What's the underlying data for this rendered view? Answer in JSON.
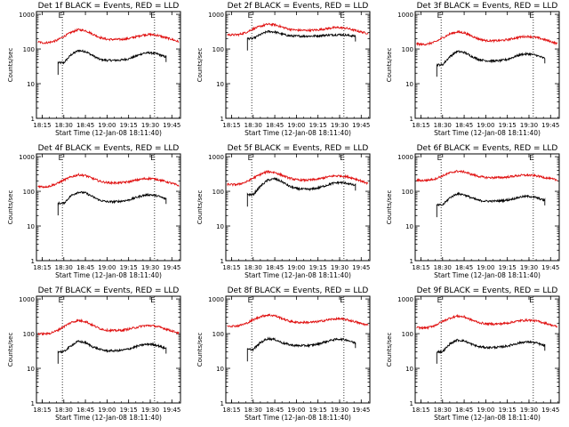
{
  "chart_data": [
    {
      "type": "line",
      "title": "Det 1f BLACK = Events, RED = LLD",
      "marker": "E",
      "xlabel": "Start Time (12-Jan-08 18:11:40)",
      "ylabel": "Counts/sec",
      "x_ticks": [
        "18:15",
        "18:30",
        "18:45",
        "19:00",
        "19:15",
        "19:30",
        "19:45"
      ],
      "y_ticks": [
        "1",
        "10",
        "100",
        "1000"
      ],
      "y_scale": "log",
      "ylim": [
        1,
        1200
      ],
      "x": [
        "18:12",
        "18:16",
        "18:20",
        "18:25",
        "18:30",
        "18:35",
        "18:40",
        "18:45",
        "18:50",
        "18:55",
        "19:00",
        "19:05",
        "19:10",
        "19:15",
        "19:20",
        "19:25",
        "19:30",
        "19:35",
        "19:40",
        "19:45",
        "19:50"
      ],
      "series": [
        {
          "name": "BLACK = Events",
          "color": "#000000",
          "x_start": "18:26",
          "x_end": "19:41",
          "values": [
            null,
            null,
            null,
            null,
            40,
            68,
            90,
            85,
            65,
            50,
            47,
            47,
            48,
            52,
            62,
            75,
            78,
            72,
            60,
            null,
            null
          ]
        },
        {
          "name": "RED = LLD",
          "color": "#e01010",
          "x_start": "18:12",
          "x_end": "19:50",
          "values": [
            160,
            150,
            155,
            175,
            230,
            300,
            360,
            340,
            270,
            215,
            190,
            188,
            190,
            200,
            225,
            255,
            262,
            248,
            215,
            190,
            160
          ]
        }
      ]
    },
    {
      "type": "line",
      "title": "Det 2f BLACK = Events, RED = LLD",
      "marker": "E",
      "xlabel": "Start Time (12-Jan-08 18:11:40)",
      "ylabel": "Counts/sec",
      "x_ticks": [
        "18:15",
        "18:30",
        "18:45",
        "19:00",
        "19:15",
        "19:30",
        "19:45"
      ],
      "y_ticks": [
        "1",
        "10",
        "100",
        "1000"
      ],
      "y_scale": "log",
      "ylim": [
        1,
        1200
      ],
      "x": [
        "18:12",
        "18:16",
        "18:20",
        "18:25",
        "18:30",
        "18:35",
        "18:40",
        "18:45",
        "18:50",
        "18:55",
        "19:00",
        "19:05",
        "19:10",
        "19:15",
        "19:20",
        "19:25",
        "19:30",
        "19:35",
        "19:40",
        "19:45",
        "19:50"
      ],
      "series": [
        {
          "name": "BLACK = Events",
          "color": "#000000",
          "x_start": "18:26",
          "x_end": "19:41",
          "values": [
            null,
            null,
            null,
            null,
            200,
            260,
            320,
            310,
            270,
            240,
            235,
            235,
            235,
            240,
            250,
            255,
            260,
            250,
            235,
            null,
            null
          ]
        },
        {
          "name": "RED = LLD",
          "color": "#e01010",
          "x_start": "18:12",
          "x_end": "19:50",
          "values": [
            260,
            255,
            260,
            300,
            380,
            450,
            520,
            500,
            430,
            370,
            350,
            345,
            345,
            355,
            380,
            410,
            415,
            395,
            350,
            310,
            280
          ]
        }
      ]
    },
    {
      "type": "line",
      "title": "Det 3f BLACK = Events, RED = LLD",
      "marker": "E",
      "xlabel": "Start Time (12-Jan-08 18:11:40)",
      "ylabel": "Counts/sec",
      "x_ticks": [
        "18:15",
        "18:30",
        "18:45",
        "19:00",
        "19:15",
        "19:30",
        "19:45"
      ],
      "y_ticks": [
        "1",
        "10",
        "100",
        "1000"
      ],
      "y_scale": "log",
      "ylim": [
        1,
        1200
      ],
      "x": [
        "18:12",
        "18:16",
        "18:20",
        "18:25",
        "18:30",
        "18:35",
        "18:40",
        "18:45",
        "18:50",
        "18:55",
        "19:00",
        "19:05",
        "19:10",
        "19:15",
        "19:20",
        "19:25",
        "19:30",
        "19:35",
        "19:40",
        "19:45",
        "19:50"
      ],
      "series": [
        {
          "name": "BLACK = Events",
          "color": "#000000",
          "x_start": "18:26",
          "x_end": "19:41",
          "values": [
            null,
            null,
            null,
            null,
            35,
            60,
            85,
            80,
            62,
            50,
            46,
            45,
            46,
            50,
            60,
            70,
            72,
            66,
            55,
            null,
            null
          ]
        },
        {
          "name": "RED = LLD",
          "color": "#e01010",
          "x_start": "18:12",
          "x_end": "19:50",
          "values": [
            140,
            135,
            140,
            160,
            210,
            270,
            310,
            295,
            240,
            195,
            175,
            172,
            175,
            185,
            205,
            225,
            230,
            215,
            190,
            165,
            140
          ]
        }
      ]
    },
    {
      "type": "line",
      "title": "Det 4f BLACK = Events, RED = LLD",
      "marker": "E",
      "xlabel": "Start Time (12-Jan-08 18:11:40)",
      "ylabel": "Counts/sec",
      "x_ticks": [
        "18:15",
        "18:30",
        "18:45",
        "19:00",
        "19:15",
        "19:30",
        "19:45"
      ],
      "y_ticks": [
        "1",
        "10",
        "100",
        "1000"
      ],
      "y_scale": "log",
      "ylim": [
        1,
        1200
      ],
      "x": [
        "18:12",
        "18:16",
        "18:20",
        "18:25",
        "18:30",
        "18:35",
        "18:40",
        "18:45",
        "18:50",
        "18:55",
        "19:00",
        "19:05",
        "19:10",
        "19:15",
        "19:20",
        "19:25",
        "19:30",
        "19:35",
        "19:40",
        "19:45",
        "19:50"
      ],
      "series": [
        {
          "name": "BLACK = Events",
          "color": "#000000",
          "x_start": "18:26",
          "x_end": "19:41",
          "values": [
            null,
            null,
            null,
            null,
            45,
            75,
            95,
            90,
            70,
            55,
            50,
            50,
            52,
            56,
            66,
            76,
            80,
            74,
            62,
            null,
            null
          ]
        },
        {
          "name": "RED = LLD",
          "color": "#e01010",
          "x_start": "18:12",
          "x_end": "19:50",
          "values": [
            140,
            135,
            140,
            165,
            210,
            260,
            300,
            285,
            235,
            195,
            178,
            175,
            178,
            188,
            208,
            228,
            235,
            220,
            195,
            170,
            145
          ]
        }
      ]
    },
    {
      "type": "line",
      "title": "Det 5f BLACK = Events, RED = LLD",
      "marker": "E",
      "xlabel": "Start Time (12-Jan-08 18:11:40)",
      "ylabel": "Counts/sec",
      "x_ticks": [
        "18:15",
        "18:30",
        "18:45",
        "19:00",
        "19:15",
        "19:30",
        "19:45"
      ],
      "y_ticks": [
        "1",
        "10",
        "100",
        "1000"
      ],
      "y_scale": "log",
      "ylim": [
        1,
        1200
      ],
      "x": [
        "18:12",
        "18:16",
        "18:20",
        "18:25",
        "18:30",
        "18:35",
        "18:40",
        "18:45",
        "18:50",
        "18:55",
        "19:00",
        "19:05",
        "19:10",
        "19:15",
        "19:20",
        "19:25",
        "19:30",
        "19:35",
        "19:40",
        "19:45",
        "19:50"
      ],
      "series": [
        {
          "name": "BLACK = Events",
          "color": "#000000",
          "x_start": "18:26",
          "x_end": "19:41",
          "values": [
            null,
            null,
            null,
            null,
            80,
            140,
            210,
            230,
            190,
            140,
            120,
            115,
            115,
            125,
            145,
            170,
            180,
            172,
            150,
            null,
            null
          ]
        },
        {
          "name": "RED = LLD",
          "color": "#e01010",
          "x_start": "18:12",
          "x_end": "19:50",
          "values": [
            160,
            155,
            160,
            185,
            240,
            310,
            370,
            350,
            290,
            240,
            215,
            210,
            212,
            225,
            250,
            275,
            280,
            265,
            235,
            200,
            165
          ]
        }
      ]
    },
    {
      "type": "line",
      "title": "Det 6f BLACK = Events, RED = LLD",
      "marker": "E",
      "xlabel": "Start Time (12-Jan-08 18:11:40)",
      "ylabel": "Counts/sec",
      "x_ticks": [
        "18:15",
        "18:30",
        "18:45",
        "19:00",
        "19:15",
        "19:30",
        "19:45"
      ],
      "y_ticks": [
        "1",
        "10",
        "100",
        "1000"
      ],
      "y_scale": "log",
      "ylim": [
        1,
        1200
      ],
      "x": [
        "18:12",
        "18:16",
        "18:20",
        "18:25",
        "18:30",
        "18:35",
        "18:40",
        "18:45",
        "18:50",
        "18:55",
        "19:00",
        "19:05",
        "19:10",
        "19:15",
        "19:20",
        "19:25",
        "19:30",
        "19:35",
        "19:40",
        "19:45",
        "19:50"
      ],
      "series": [
        {
          "name": "BLACK = Events",
          "color": "#000000",
          "x_start": "18:26",
          "x_end": "19:41",
          "values": [
            null,
            null,
            null,
            null,
            40,
            65,
            85,
            80,
            65,
            55,
            52,
            52,
            53,
            56,
            62,
            70,
            72,
            66,
            56,
            null,
            null
          ]
        },
        {
          "name": "RED = LLD",
          "color": "#e01010",
          "x_start": "18:12",
          "x_end": "19:50",
          "values": [
            210,
            205,
            210,
            230,
            280,
            340,
            380,
            365,
            310,
            270,
            250,
            248,
            250,
            258,
            275,
            290,
            292,
            280,
            255,
            230,
            210
          ]
        }
      ]
    },
    {
      "type": "line",
      "title": "Det 7f BLACK = Events, RED = LLD",
      "marker": "E",
      "xlabel": "Start Time (12-Jan-08 18:11:40)",
      "ylabel": "Counts/sec",
      "x_ticks": [
        "18:15",
        "18:30",
        "18:45",
        "19:00",
        "19:15",
        "19:30",
        "19:45"
      ],
      "y_ticks": [
        "1",
        "10",
        "100",
        "1000"
      ],
      "y_scale": "log",
      "ylim": [
        1,
        1200
      ],
      "x": [
        "18:12",
        "18:16",
        "18:20",
        "18:25",
        "18:30",
        "18:35",
        "18:40",
        "18:45",
        "18:50",
        "18:55",
        "19:00",
        "19:05",
        "19:10",
        "19:15",
        "19:20",
        "19:25",
        "19:30",
        "19:35",
        "19:40",
        "19:45",
        "19:50"
      ],
      "series": [
        {
          "name": "BLACK = Events",
          "color": "#000000",
          "x_start": "18:26",
          "x_end": "19:41",
          "values": [
            null,
            null,
            null,
            null,
            30,
            45,
            60,
            55,
            42,
            35,
            32,
            32,
            33,
            36,
            42,
            48,
            50,
            46,
            38,
            null,
            null
          ]
        },
        {
          "name": "RED = LLD",
          "color": "#e01010",
          "x_start": "18:12",
          "x_end": "19:50",
          "values": [
            100,
            98,
            102,
            120,
            160,
            210,
            240,
            225,
            175,
            140,
            125,
            122,
            125,
            135,
            150,
            168,
            172,
            160,
            140,
            120,
            105
          ]
        }
      ]
    },
    {
      "type": "line",
      "title": "Det 8f BLACK = Events, RED = LLD",
      "marker": "E",
      "xlabel": "Start Time (12-Jan-08 18:11:40)",
      "ylabel": "Counts/sec",
      "x_ticks": [
        "18:15",
        "18:30",
        "18:45",
        "19:00",
        "19:15",
        "19:30",
        "19:45"
      ],
      "y_ticks": [
        "1",
        "10",
        "100",
        "1000"
      ],
      "y_scale": "log",
      "ylim": [
        1,
        1200
      ],
      "x": [
        "18:12",
        "18:16",
        "18:20",
        "18:25",
        "18:30",
        "18:35",
        "18:40",
        "18:45",
        "18:50",
        "18:55",
        "19:00",
        "19:05",
        "19:10",
        "19:15",
        "19:20",
        "19:25",
        "19:30",
        "19:35",
        "19:40",
        "19:45",
        "19:50"
      ],
      "series": [
        {
          "name": "BLACK = Events",
          "color": "#000000",
          "x_start": "18:26",
          "x_end": "19:41",
          "values": [
            null,
            null,
            null,
            null,
            35,
            55,
            72,
            68,
            55,
            48,
            45,
            45,
            46,
            50,
            58,
            66,
            70,
            66,
            55,
            null,
            null
          ]
        },
        {
          "name": "RED = LLD",
          "color": "#e01010",
          "x_start": "18:12",
          "x_end": "19:50",
          "values": [
            170,
            165,
            170,
            195,
            250,
            310,
            345,
            330,
            275,
            230,
            212,
            210,
            212,
            222,
            242,
            262,
            268,
            252,
            225,
            195,
            175
          ]
        }
      ]
    },
    {
      "type": "line",
      "title": "Det 9f BLACK = Events, RED = LLD",
      "marker": "E",
      "xlabel": "Start Time (12-Jan-08 18:11:40)",
      "ylabel": "Counts/sec",
      "x_ticks": [
        "18:15",
        "18:30",
        "18:45",
        "19:00",
        "19:15",
        "19:30",
        "19:45"
      ],
      "y_ticks": [
        "1",
        "10",
        "100",
        "1000"
      ],
      "y_scale": "log",
      "ylim": [
        1,
        1200
      ],
      "x": [
        "18:12",
        "18:16",
        "18:20",
        "18:25",
        "18:30",
        "18:35",
        "18:40",
        "18:45",
        "18:50",
        "18:55",
        "19:00",
        "19:05",
        "19:10",
        "19:15",
        "19:20",
        "19:25",
        "19:30",
        "19:35",
        "19:40",
        "19:45",
        "19:50"
      ],
      "series": [
        {
          "name": "BLACK = Events",
          "color": "#000000",
          "x_start": "18:26",
          "x_end": "19:41",
          "values": [
            null,
            null,
            null,
            null,
            30,
            50,
            65,
            62,
            50,
            42,
            40,
            40,
            41,
            44,
            50,
            56,
            58,
            54,
            46,
            null,
            null
          ]
        },
        {
          "name": "RED = LLD",
          "color": "#e01010",
          "x_start": "18:12",
          "x_end": "19:50",
          "values": [
            150,
            145,
            150,
            175,
            225,
            280,
            320,
            305,
            250,
            210,
            192,
            190,
            192,
            202,
            222,
            240,
            245,
            232,
            208,
            180,
            155
          ]
        }
      ]
    }
  ]
}
